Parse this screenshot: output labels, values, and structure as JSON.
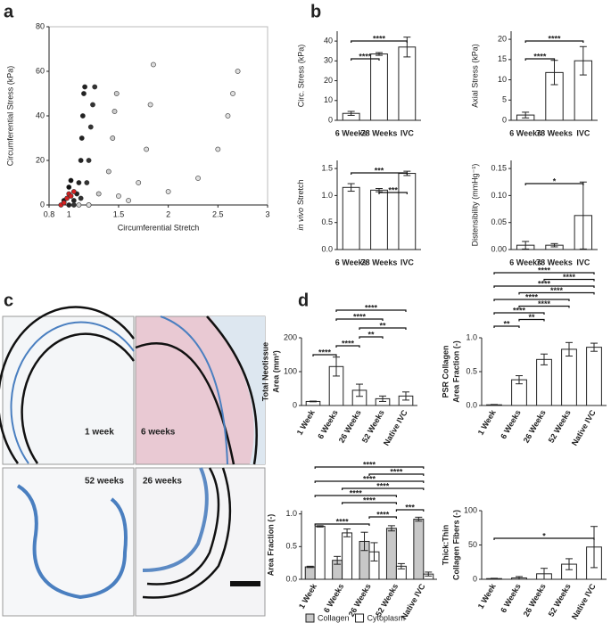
{
  "panel_labels": [
    "a",
    "b",
    "c",
    "d"
  ],
  "micrographs": [
    {
      "label": "1 week"
    },
    {
      "label": "6 weeks"
    },
    {
      "label": "52 weeks"
    },
    {
      "label": "26 weeks"
    }
  ],
  "chart_data": [
    {
      "type": "scatter",
      "x_label": "Circumferential Stretch",
      "y_label": [
        "Circumferential Stress (kPa)"
      ],
      "xlim": [
        0.8,
        3
      ],
      "xticks": [
        0.8,
        1,
        1.5,
        2,
        2.5,
        3
      ],
      "ylim": [
        0,
        80
      ],
      "yticks": [
        0,
        20,
        40,
        60,
        80
      ],
      "series": [
        {
          "color": "#222222",
          "x": [
            1.0,
            1.05,
            1.08,
            1.1,
            1.12,
            1.13,
            1.14,
            1.15,
            1.16
          ],
          "values": [
            0,
            2,
            5,
            10,
            20,
            30,
            40,
            50,
            53
          ]
        },
        {
          "color": "#333333",
          "x": [
            1.05,
            1.12,
            1.18,
            1.2,
            1.22,
            1.24,
            1.26
          ],
          "values": [
            0,
            3,
            10,
            20,
            35,
            45,
            53
          ]
        },
        {
          "color": "#cccccc",
          "x": [
            1.1,
            1.3,
            1.4,
            1.44,
            1.46,
            1.48
          ],
          "values": [
            0,
            5,
            15,
            30,
            42,
            50
          ]
        },
        {
          "color": "#dddddd",
          "x": [
            1.2,
            1.5,
            1.7,
            1.78,
            1.82,
            1.85
          ],
          "values": [
            0,
            4,
            10,
            25,
            45,
            63
          ]
        },
        {
          "color": "#e0e0e0",
          "x": [
            1.2,
            1.6,
            2.0,
            2.3,
            2.5,
            2.6,
            2.65,
            2.7
          ],
          "values": [
            0,
            2,
            6,
            12,
            25,
            40,
            50,
            60
          ]
        },
        {
          "color": "#111111",
          "x": [
            0.95,
            1.0,
            1.02
          ],
          "values": [
            2,
            8,
            11
          ]
        },
        {
          "color": "#d62020",
          "x": [
            0.92,
            0.95,
            0.98,
            1.0,
            1.02,
            1.05
          ],
          "values": [
            0,
            1,
            3,
            5,
            4,
            6
          ]
        }
      ]
    },
    {
      "type": "bar",
      "y_label": [
        "Circ. Stress (kPa)"
      ],
      "categories": [
        "6 Weeks",
        "78 Weeks",
        "IVC"
      ],
      "values": [
        3.5,
        33.5,
        37
      ],
      "errors": [
        1,
        0.7,
        5
      ],
      "color": "#ffffff",
      "ylim": [
        0,
        45
      ],
      "yticks": [
        0,
        10,
        20,
        30,
        40
      ],
      "brackets": [
        {
          "from": "6 Weeks",
          "to": "78 Weeks",
          "label": "****"
        },
        {
          "from": "6 Weeks",
          "to": "IVC",
          "label": "****"
        }
      ]
    },
    {
      "type": "bar",
      "y_label": [
        "Axial Stress (kPa)"
      ],
      "categories": [
        "6 Weeks",
        "78 Weeks",
        "IVC"
      ],
      "values": [
        1.3,
        11.8,
        14.7
      ],
      "errors": [
        0.7,
        3,
        3.5
      ],
      "color": "#ffffff",
      "ylim": [
        0,
        22
      ],
      "yticks": [
        0,
        5,
        10,
        15,
        20
      ],
      "brackets": [
        {
          "from": "6 Weeks",
          "to": "78 Weeks",
          "label": "****"
        },
        {
          "from": "6 Weeks",
          "to": "IVC",
          "label": "****"
        }
      ]
    },
    {
      "type": "bar",
      "y_label_italic": "in vivo",
      "y_label": [
        "Stretch"
      ],
      "categories": [
        "6 Weeks",
        "78 Weeks",
        "IVC"
      ],
      "values": [
        1.15,
        1.1,
        1.41
      ],
      "errors": [
        0.07,
        0.03,
        0.04
      ],
      "color": "#ffffff",
      "ylim": [
        0,
        1.65
      ],
      "yticks": [
        {
          "value": 0,
          "label": "0.0"
        },
        {
          "value": 0.5,
          "label": "0.5"
        },
        {
          "value": 1,
          "label": "1.0"
        },
        {
          "value": 1.5,
          "label": "1.5"
        }
      ],
      "brackets": [
        {
          "from": "78 Weeks",
          "to": "IVC",
          "label": "***"
        },
        {
          "from": "6 Weeks",
          "to": "IVC",
          "label": "***"
        }
      ]
    },
    {
      "type": "bar",
      "y_label": [
        "Distensibility (mmHg⁻¹)"
      ],
      "categories": [
        "6 Weeks",
        "78 Weeks",
        "IVC"
      ],
      "values": [
        0.008,
        0.008,
        0.063
      ],
      "errors": [
        0.007,
        0.003,
        0.062
      ],
      "color": "#ffffff",
      "ylim": [
        0,
        0.165
      ],
      "yticks": [
        {
          "value": 0,
          "label": "0.00"
        },
        {
          "value": 0.05,
          "label": "0.05"
        },
        {
          "value": 0.1,
          "label": "0.10"
        },
        {
          "value": 0.15,
          "label": "0.15"
        }
      ],
      "brackets": [
        {
          "from": "6 Weeks",
          "to": "IVC",
          "label": "*"
        }
      ]
    },
    {
      "type": "bar",
      "y_label": [
        "Total Neotissue",
        "Area (mm²)"
      ],
      "categories": [
        "1 Week",
        "6 Weeks",
        "26 Weeks",
        "52 Weeks",
        "Native IVC"
      ],
      "values": [
        12,
        115,
        45,
        20,
        28
      ],
      "errors": [
        1,
        28,
        18,
        8,
        12
      ],
      "color": "#ffffff",
      "ylim": [
        0,
        200
      ],
      "yticks": [
        0,
        100,
        200
      ],
      "brackets": [
        {
          "from": "1 Week",
          "to": "6 Weeks",
          "label": "****"
        },
        {
          "from": "6 Weeks",
          "to": "26 Weeks",
          "label": "****"
        },
        {
          "from": "26 Weeks",
          "to": "52 Weeks",
          "label": "**"
        },
        {
          "from": "26 Weeks",
          "to": "Native IVC",
          "label": "**"
        },
        {
          "from": "6 Weeks",
          "to": "52 Weeks",
          "label": "****"
        },
        {
          "from": "6 Weeks",
          "to": "Native IVC",
          "label": "****"
        }
      ]
    },
    {
      "type": "bar",
      "y_label": [
        "PSR Collagen",
        "Area Fraction (-)"
      ],
      "categories": [
        "1 Week",
        "6 Weeks",
        "26 Weeks",
        "52 Weeks",
        "Native IVC"
      ],
      "values": [
        0.01,
        0.38,
        0.68,
        0.83,
        0.86
      ],
      "errors": [
        0.005,
        0.06,
        0.08,
        0.1,
        0.06
      ],
      "color": "#ffffff",
      "ylim": [
        0,
        1
      ],
      "yticks": [
        {
          "value": 0,
          "label": "0.0"
        },
        {
          "value": 0.5,
          "label": "0.5"
        },
        {
          "value": 1,
          "label": "1.0"
        }
      ],
      "brackets": [
        {
          "from": "1 Week",
          "to": "6 Weeks",
          "label": "**"
        },
        {
          "from": "6 Weeks",
          "to": "26 Weeks",
          "label": "**"
        },
        {
          "from": "1 Week",
          "to": "26 Weeks",
          "label": "****"
        },
        {
          "from": "6 Weeks",
          "to": "52 Weeks",
          "label": "****"
        },
        {
          "from": "1 Week",
          "to": "52 Weeks",
          "label": "****"
        },
        {
          "from": "6 Weeks",
          "to": "Native IVC",
          "label": "****"
        },
        {
          "from": "1 Week",
          "to": "Native IVC",
          "label": "****"
        },
        {
          "from": "26 Weeks",
          "to": "Native IVC",
          "label": "****"
        },
        {
          "from": "1 Week",
          "to": "Native IVC",
          "label": "****"
        }
      ]
    },
    {
      "type": "bar",
      "y_label": [
        "Area Fraction (-)"
      ],
      "categories": [
        "1 Week",
        "6 Weeks",
        "26 Weeks",
        "52 Weeks",
        "Native IVC"
      ],
      "series": [
        {
          "name": "Collagen",
          "color": "#c8c8c8",
          "values": [
            0.19,
            0.29,
            0.58,
            0.78,
            0.92
          ],
          "errors": [
            0.01,
            0.06,
            0.14,
            0.04,
            0.03
          ]
        },
        {
          "name": "Cytoplasm",
          "color": "#ffffff",
          "values": [
            0.81,
            0.71,
            0.42,
            0.2,
            0.08
          ],
          "errors": [
            0.01,
            0.06,
            0.14,
            0.04,
            0.03
          ]
        }
      ],
      "ylim": [
        0,
        1.05
      ],
      "yticks": [
        {
          "value": 0,
          "label": "0.0"
        },
        {
          "value": 0.5,
          "label": "0.5"
        },
        {
          "value": 1,
          "label": "1.0"
        }
      ],
      "brackets": [
        {
          "from": "1 Week",
          "to": "26 Weeks",
          "label": "****"
        },
        {
          "from": "26 Weeks",
          "to": "52 Weeks",
          "label": "****"
        },
        {
          "from": "52 Weeks",
          "to": "Native IVC",
          "label": "***"
        },
        {
          "from": "6 Weeks",
          "to": "52 Weeks",
          "label": "****"
        },
        {
          "from": "1 Week",
          "to": "52 Weeks",
          "label": "****"
        },
        {
          "from": "6 Weeks",
          "to": "Native IVC",
          "label": "****"
        },
        {
          "from": "1 Week",
          "to": "Native IVC",
          "label": "****"
        },
        {
          "from": "26 Weeks",
          "to": "Native IVC",
          "label": "****"
        },
        {
          "from": "1 Week",
          "to": "Native IVC",
          "label": "****"
        }
      ]
    },
    {
      "type": "bar",
      "y_label": [
        "Thick:Thin",
        "Collagen Fibers (-)"
      ],
      "categories": [
        "1 Week",
        "6 Weeks",
        "26 Weeks",
        "52 Weeks",
        "Native IVC"
      ],
      "values": [
        1,
        2,
        8,
        22,
        47
      ],
      "errors": [
        0.5,
        2,
        8,
        8,
        30
      ],
      "color": "#ffffff",
      "ylim": [
        0,
        100
      ],
      "yticks": [
        0,
        50,
        100
      ],
      "brackets": [
        {
          "from": "1 Week",
          "to": "Native IVC",
          "label": "*"
        }
      ]
    }
  ]
}
